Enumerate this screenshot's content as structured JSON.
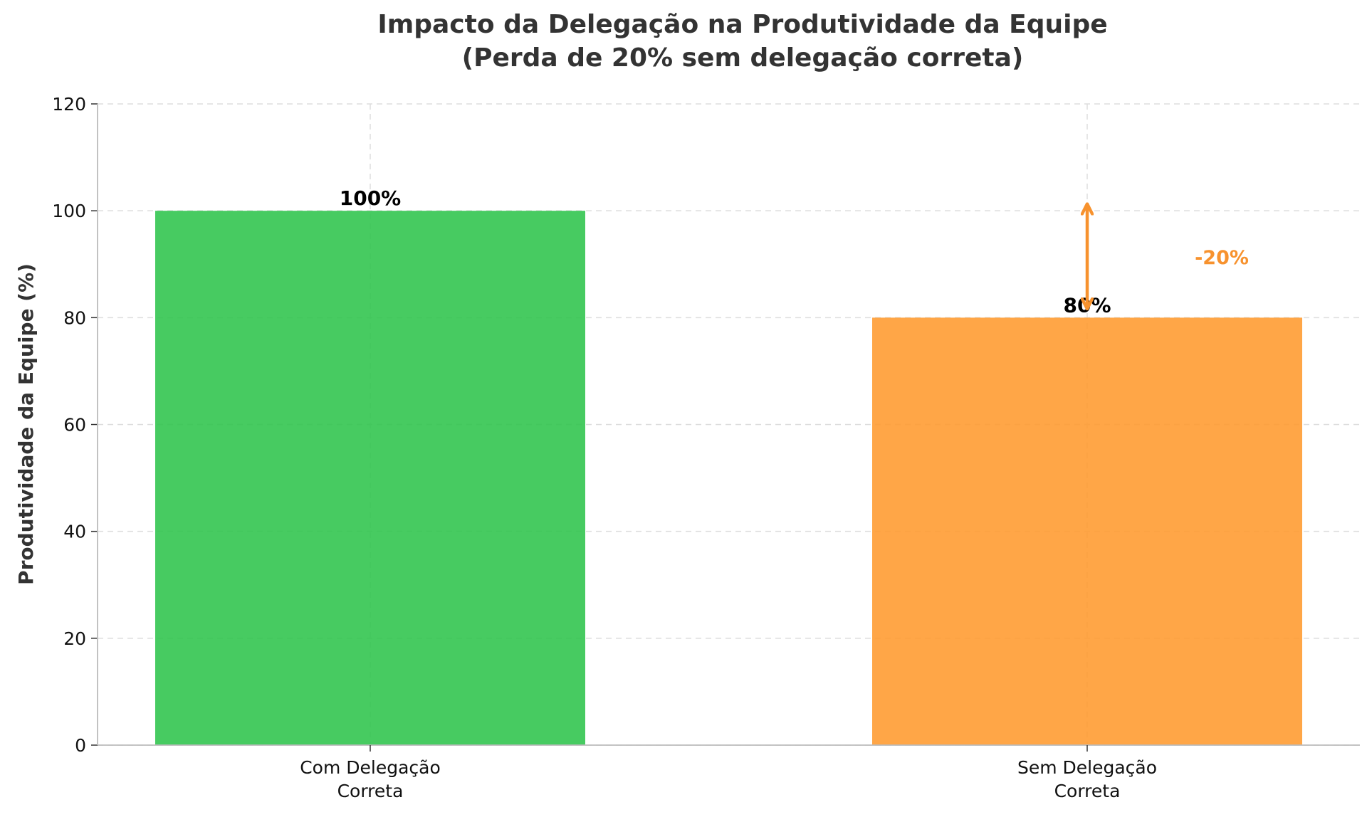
{
  "chart_data": {
    "type": "bar",
    "title": "Impacto da Delegação na Produtividade da Equipe",
    "subtitle": "(Perda de 20% sem delegação correta)",
    "xlabel": "",
    "ylabel": "Produtividade da Equipe (%)",
    "ylim": [
      0,
      120
    ],
    "yticks": [
      0,
      20,
      40,
      60,
      80,
      100,
      120
    ],
    "categories": [
      [
        "Com Delegação",
        "Correta"
      ],
      [
        "Sem Delegação",
        "Correta"
      ]
    ],
    "values": [
      100,
      80
    ],
    "data_labels": [
      "100%",
      "80%"
    ],
    "colors": [
      "#2ec44b",
      "#ff9a2e"
    ],
    "grid": true,
    "annotation": {
      "text": "-20%",
      "color": "#f7922e",
      "arrow_from": 80,
      "arrow_to": 100
    }
  }
}
